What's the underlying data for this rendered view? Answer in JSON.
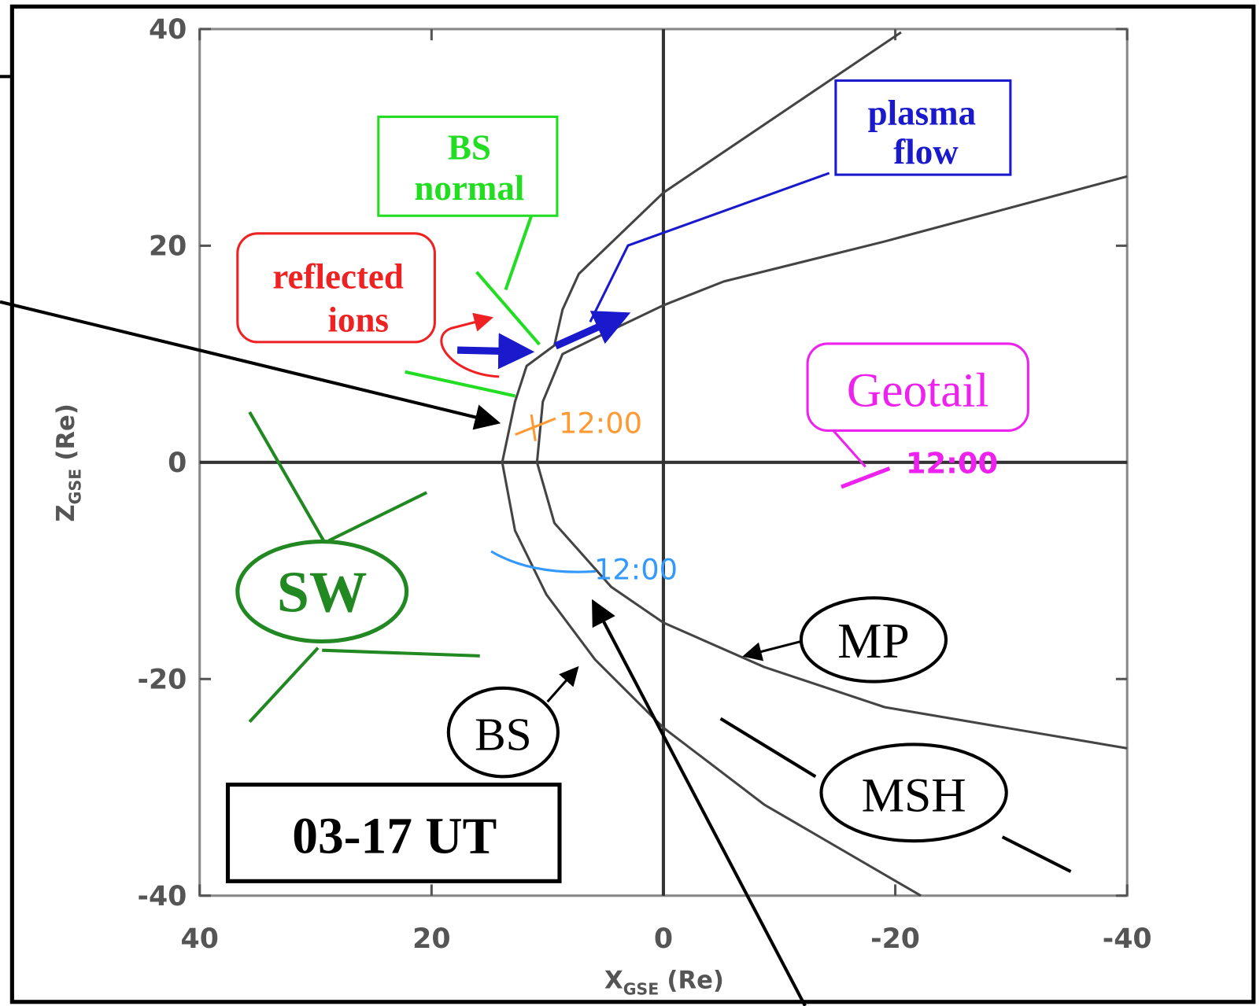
{
  "chart_data": {
    "type": "line",
    "x_label": {
      "main": "X",
      "sub": "GSE",
      "unit": "(Re)"
    },
    "y_label": {
      "main": "Z",
      "sub": "GSE",
      "unit": "(Re)"
    },
    "xlim": [
      40,
      -40
    ],
    "ylim": [
      -40,
      40
    ],
    "xticks": [
      40,
      20,
      0,
      -20,
      -40
    ],
    "yticks": [
      40,
      20,
      0,
      -20,
      -40
    ],
    "series": [
      {
        "name": "BS",
        "color": "#444444",
        "x": [
          -20.5,
          0,
          7.3,
          8.7,
          9.4,
          11.8,
          12.8,
          13.9,
          12.8,
          10.1,
          5.9,
          0,
          -8.7,
          -22.2
        ],
        "values": [
          39.7,
          24.9,
          17.4,
          14.1,
          10.8,
          8.9,
          5.6,
          0,
          -6.3,
          -12.2,
          -18.2,
          -24.5,
          -31.6,
          -40
        ]
      },
      {
        "name": "MP",
        "color": "#444444",
        "x": [
          -40,
          -19.1,
          -5.2,
          0,
          4.5,
          8.7,
          10.4,
          10.9,
          9.4,
          4.5,
          0,
          -8.7,
          -19.1,
          -40
        ],
        "values": [
          26.4,
          20.4,
          16.7,
          14.5,
          12.2,
          10.0,
          5.6,
          0,
          -5.6,
          -11.5,
          -14.8,
          -18.9,
          -22.6,
          -26.4
        ]
      }
    ],
    "annotations": [
      [
        "BS",
        "normal"
      ],
      [
        "plasma",
        "flow"
      ],
      [
        "reflected",
        "ions"
      ],
      "Geotail",
      "SW",
      "MSH",
      "03-17 UT",
      "12:00",
      "12:00",
      "12:00"
    ]
  }
}
